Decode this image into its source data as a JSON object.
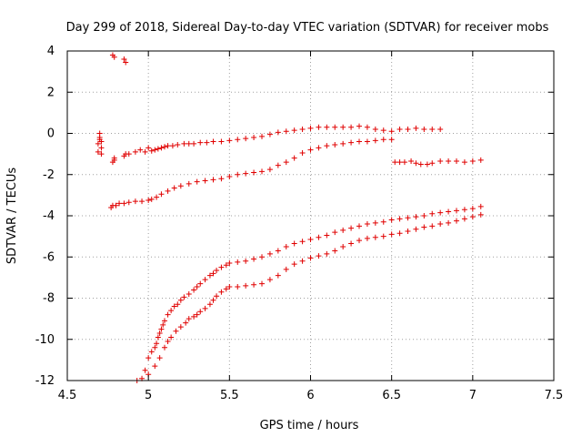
{
  "chart_data": {
    "type": "scatter",
    "title": "Day 299 of 2018, Sidereal Day-to-day VTEC variation (SDTVAR) for receiver mobs",
    "xlabel": "GPS time / hours",
    "ylabel": "SDTVAR / TECUs",
    "xlim": [
      4.5,
      7.5
    ],
    "ylim": [
      -12,
      4
    ],
    "xticks": [
      "4.5",
      "5",
      "5.5",
      "6",
      "6.5",
      "7",
      "7.5"
    ],
    "yticks": [
      "4",
      "2",
      "0",
      "-2",
      "-4",
      "-6",
      "-8",
      "-10",
      "-12"
    ],
    "grid": true,
    "marker": "+",
    "color": "#e00000",
    "series": [
      {
        "name": "track-top",
        "x": [
          4.69,
          4.69,
          4.7,
          4.7,
          4.7,
          4.71,
          4.71,
          4.71,
          4.78,
          4.79,
          4.79,
          4.85,
          4.86,
          4.88,
          4.92,
          4.95,
          4.98,
          5.0,
          5.02,
          5.04,
          5.06,
          5.08,
          5.1,
          5.12,
          5.15,
          5.18,
          5.22,
          5.25,
          5.28,
          5.32,
          5.36,
          5.4,
          5.45,
          5.5,
          5.55,
          5.6,
          5.65,
          5.7,
          5.75,
          5.8,
          5.85,
          5.9,
          5.95,
          6.0,
          6.05,
          6.1,
          6.15,
          6.2,
          6.25,
          6.3,
          6.35,
          6.4,
          6.45,
          6.5,
          6.55,
          6.6,
          6.65,
          6.7,
          6.75,
          6.8
        ],
        "y": [
          -0.9,
          -0.5,
          -0.2,
          0.0,
          -0.3,
          -0.7,
          -0.4,
          -1.0,
          -1.4,
          -1.2,
          -1.3,
          -1.1,
          -1.0,
          -1.0,
          -0.9,
          -0.8,
          -0.9,
          -0.7,
          -0.85,
          -0.8,
          -0.75,
          -0.7,
          -0.65,
          -0.6,
          -0.6,
          -0.55,
          -0.5,
          -0.5,
          -0.5,
          -0.45,
          -0.45,
          -0.4,
          -0.4,
          -0.35,
          -0.3,
          -0.25,
          -0.2,
          -0.15,
          -0.05,
          0.05,
          0.1,
          0.15,
          0.2,
          0.25,
          0.3,
          0.3,
          0.3,
          0.3,
          0.3,
          0.35,
          0.3,
          0.2,
          0.15,
          0.1,
          0.2,
          0.2,
          0.25,
          0.2,
          0.2,
          0.2
        ]
      },
      {
        "name": "track-right-flat",
        "x": [
          6.52,
          6.55,
          6.58,
          6.62,
          6.65,
          6.68,
          6.72,
          6.75,
          6.8,
          6.85,
          6.9,
          6.95,
          7.0,
          7.05
        ],
        "y": [
          -1.4,
          -1.4,
          -1.4,
          -1.35,
          -1.45,
          -1.5,
          -1.5,
          -1.45,
          -1.35,
          -1.35,
          -1.35,
          -1.4,
          -1.35,
          -1.3
        ]
      },
      {
        "name": "track-mid",
        "x": [
          4.77,
          4.78,
          4.8,
          4.82,
          4.85,
          4.88,
          4.92,
          4.96,
          5.0,
          5.02,
          5.05,
          5.08,
          5.12,
          5.16,
          5.2,
          5.25,
          5.3,
          5.35,
          5.4,
          5.45,
          5.5,
          5.55,
          5.6,
          5.65,
          5.7,
          5.75,
          5.8,
          5.85,
          5.9,
          5.95,
          6.0,
          6.05,
          6.1,
          6.15,
          6.2,
          6.25,
          6.3,
          6.35,
          6.4,
          6.45,
          6.5
        ],
        "y": [
          -3.6,
          -3.5,
          -3.5,
          -3.4,
          -3.4,
          -3.35,
          -3.3,
          -3.3,
          -3.25,
          -3.2,
          -3.1,
          -2.95,
          -2.8,
          -2.65,
          -2.55,
          -2.45,
          -2.35,
          -2.3,
          -2.25,
          -2.2,
          -2.1,
          -2.0,
          -1.95,
          -1.9,
          -1.85,
          -1.75,
          -1.55,
          -1.4,
          -1.2,
          -0.95,
          -0.8,
          -0.7,
          -0.6,
          -0.55,
          -0.5,
          -0.45,
          -0.4,
          -0.4,
          -0.35,
          -0.3,
          -0.3
        ]
      },
      {
        "name": "track-low-a",
        "x": [
          4.93,
          4.96,
          4.98,
          5.0,
          5.02,
          5.04,
          5.05,
          5.06,
          5.07,
          5.08,
          5.09,
          5.1,
          5.12,
          5.14,
          5.16,
          5.18,
          5.2,
          5.22,
          5.25,
          5.28,
          5.3,
          5.32,
          5.35,
          5.38,
          5.4,
          5.42,
          5.45,
          5.48,
          5.5,
          5.55,
          5.6,
          5.65,
          5.7,
          5.75,
          5.8,
          5.85,
          5.9,
          5.95,
          6.0,
          6.05,
          6.1,
          6.15,
          6.2,
          6.25,
          6.3,
          6.35,
          6.4,
          6.45,
          6.5,
          6.55,
          6.6,
          6.65,
          6.7,
          6.75,
          6.8,
          6.85,
          6.9,
          6.95,
          7.0,
          7.05
        ],
        "y": [
          -12.0,
          -11.9,
          -11.5,
          -10.9,
          -10.6,
          -10.4,
          -10.2,
          -9.9,
          -9.7,
          -9.5,
          -9.3,
          -9.1,
          -8.8,
          -8.6,
          -8.4,
          -8.3,
          -8.1,
          -7.95,
          -7.8,
          -7.6,
          -7.45,
          -7.3,
          -7.1,
          -6.9,
          -6.8,
          -6.65,
          -6.5,
          -6.4,
          -6.3,
          -6.25,
          -6.2,
          -6.1,
          -6.0,
          -5.85,
          -5.7,
          -5.5,
          -5.35,
          -5.25,
          -5.15,
          -5.05,
          -4.95,
          -4.8,
          -4.7,
          -4.6,
          -4.5,
          -4.4,
          -4.35,
          -4.3,
          -4.2,
          -4.15,
          -4.1,
          -4.05,
          -4.0,
          -3.9,
          -3.85,
          -3.8,
          -3.75,
          -3.7,
          -3.65,
          -3.55
        ]
      },
      {
        "name": "track-low-b",
        "x": [
          5.0,
          5.04,
          5.07,
          5.1,
          5.12,
          5.14,
          5.17,
          5.2,
          5.23,
          5.25,
          5.28,
          5.3,
          5.32,
          5.35,
          5.38,
          5.4,
          5.42,
          5.45,
          5.48,
          5.5,
          5.55,
          5.6,
          5.65,
          5.7,
          5.75,
          5.8,
          5.85,
          5.9,
          5.95,
          6.0,
          6.05,
          6.1,
          6.15,
          6.2,
          6.25,
          6.3,
          6.35,
          6.4,
          6.45,
          6.5,
          6.55,
          6.6,
          6.65,
          6.7,
          6.75,
          6.8,
          6.85,
          6.9,
          6.95,
          7.0,
          7.05
        ],
        "y": [
          -11.7,
          -11.3,
          -10.9,
          -10.4,
          -10.1,
          -9.9,
          -9.6,
          -9.4,
          -9.2,
          -9.0,
          -8.9,
          -8.8,
          -8.65,
          -8.5,
          -8.3,
          -8.1,
          -7.9,
          -7.7,
          -7.55,
          -7.45,
          -7.45,
          -7.4,
          -7.35,
          -7.3,
          -7.1,
          -6.9,
          -6.6,
          -6.35,
          -6.2,
          -6.05,
          -5.95,
          -5.85,
          -5.7,
          -5.5,
          -5.35,
          -5.2,
          -5.1,
          -5.05,
          -5.0,
          -4.9,
          -4.85,
          -4.75,
          -4.65,
          -4.55,
          -4.5,
          -4.4,
          -4.35,
          -4.25,
          -4.15,
          -4.05,
          -3.95
        ]
      },
      {
        "name": "outliers",
        "x": [
          4.78,
          4.79,
          4.85,
          4.86
        ],
        "y": [
          3.8,
          3.7,
          3.6,
          3.45
        ]
      }
    ]
  }
}
